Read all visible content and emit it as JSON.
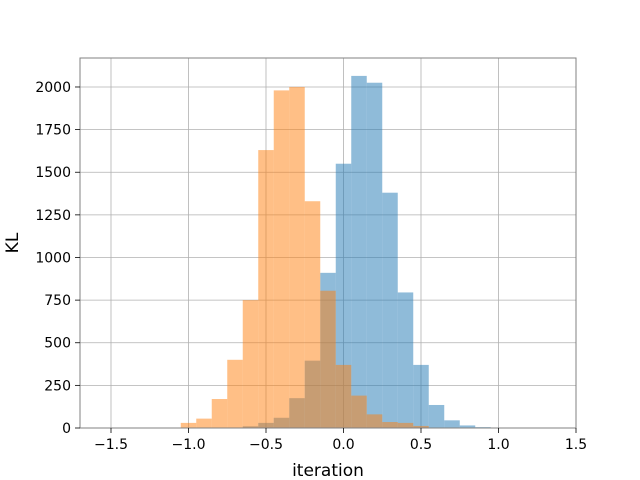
{
  "chart_data": {
    "type": "histogram",
    "title": "",
    "xlabel": "iteration",
    "ylabel": "KL",
    "xlim": [
      -1.7,
      1.5
    ],
    "ylim": [
      0,
      2170
    ],
    "xticks": [
      -1.5,
      -1.0,
      -0.5,
      0.0,
      0.5,
      1.0,
      1.5
    ],
    "xtick_labels": [
      "−1.5",
      "−1.0",
      "−0.5",
      "0.0",
      "0.5",
      "1.0",
      "1.5"
    ],
    "yticks": [
      0,
      250,
      500,
      750,
      1000,
      1250,
      1500,
      1750,
      2000
    ],
    "ytick_labels": [
      "0",
      "250",
      "500",
      "750",
      "1000",
      "1250",
      "1500",
      "1750",
      "2000"
    ],
    "grid": true,
    "series": [
      {
        "color": "#1f77b4",
        "alpha": 0.5,
        "bins": [
          {
            "x0": -0.75,
            "x1": -0.65,
            "count": 3
          },
          {
            "x0": -0.65,
            "x1": -0.55,
            "count": 10
          },
          {
            "x0": -0.55,
            "x1": -0.45,
            "count": 30
          },
          {
            "x0": -0.45,
            "x1": -0.35,
            "count": 60
          },
          {
            "x0": -0.35,
            "x1": -0.25,
            "count": 175
          },
          {
            "x0": -0.25,
            "x1": -0.15,
            "count": 395
          },
          {
            "x0": -0.15,
            "x1": -0.05,
            "count": 910
          },
          {
            "x0": -0.05,
            "x1": 0.05,
            "count": 1550
          },
          {
            "x0": 0.05,
            "x1": 0.15,
            "count": 2065
          },
          {
            "x0": 0.15,
            "x1": 0.25,
            "count": 2025
          },
          {
            "x0": 0.25,
            "x1": 0.35,
            "count": 1380
          },
          {
            "x0": 0.35,
            "x1": 0.45,
            "count": 795
          },
          {
            "x0": 0.45,
            "x1": 0.55,
            "count": 370
          },
          {
            "x0": 0.55,
            "x1": 0.65,
            "count": 135
          },
          {
            "x0": 0.65,
            "x1": 0.75,
            "count": 45
          },
          {
            "x0": 0.75,
            "x1": 0.85,
            "count": 15
          },
          {
            "x0": 0.85,
            "x1": 0.95,
            "count": 5
          }
        ]
      },
      {
        "color": "#ff7f0e",
        "alpha": 0.5,
        "bins": [
          {
            "x0": -1.05,
            "x1": -0.95,
            "count": 30
          },
          {
            "x0": -0.95,
            "x1": -0.85,
            "count": 55
          },
          {
            "x0": -0.85,
            "x1": -0.75,
            "count": 170
          },
          {
            "x0": -0.75,
            "x1": -0.65,
            "count": 400
          },
          {
            "x0": -0.65,
            "x1": -0.55,
            "count": 750
          },
          {
            "x0": -0.55,
            "x1": -0.45,
            "count": 1630
          },
          {
            "x0": -0.45,
            "x1": -0.35,
            "count": 1980
          },
          {
            "x0": -0.35,
            "x1": -0.25,
            "count": 2000
          },
          {
            "x0": -0.25,
            "x1": -0.15,
            "count": 1330
          },
          {
            "x0": -0.15,
            "x1": -0.05,
            "count": 805
          },
          {
            "x0": -0.05,
            "x1": 0.05,
            "count": 370
          },
          {
            "x0": 0.05,
            "x1": 0.15,
            "count": 190
          },
          {
            "x0": 0.15,
            "x1": 0.25,
            "count": 80
          },
          {
            "x0": 0.25,
            "x1": 0.35,
            "count": 35
          },
          {
            "x0": 0.35,
            "x1": 0.45,
            "count": 30
          },
          {
            "x0": 0.45,
            "x1": 0.55,
            "count": 12
          }
        ]
      }
    ]
  }
}
